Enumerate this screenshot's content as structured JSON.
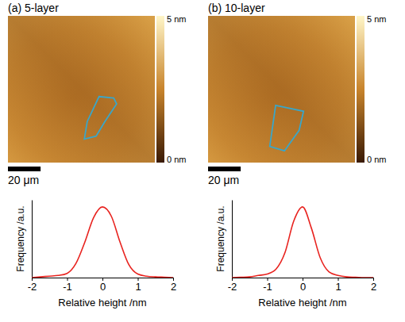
{
  "images": [
    {
      "title": "(a) 5-layer",
      "colorbar_range": [
        0,
        5
      ],
      "colorbar_ticks": [
        {
          "value": 0,
          "label": "0 nm"
        },
        {
          "value": 5,
          "label": "5 nm"
        }
      ],
      "extent": 90,
      "scale_bar": {
        "value": 20,
        "label": "20 μm"
      }
    },
    {
      "title": "(b) 10-layer",
      "colorbar_range": [
        0,
        5
      ],
      "colorbar_ticks": [
        {
          "value": 0,
          "label": "0 nm"
        },
        {
          "value": 5,
          "label": "5 nm"
        }
      ],
      "extent": 90,
      "scale_bar": {
        "value": 20,
        "label": "20 μm"
      }
    }
  ],
  "chart_data": [
    {
      "type": "line",
      "xlabel": "Relative height /nm",
      "ylabel": "Frequency /a.u.",
      "x": [
        -2,
        -1.75,
        -1.5,
        -1.25,
        -1,
        -0.75,
        -0.5,
        -0.25,
        0,
        0.25,
        0.5,
        0.75,
        1,
        1.25,
        1.5,
        1.75,
        2
      ],
      "values": [
        0.0,
        0.01,
        0.02,
        0.03,
        0.06,
        0.2,
        0.5,
        0.85,
        1.0,
        0.87,
        0.5,
        0.18,
        0.05,
        0.02,
        0.01,
        0.005,
        0.0
      ],
      "color": "#e8231f",
      "xlim": [
        -2,
        2
      ],
      "xticks": [
        -2,
        -1,
        0,
        1,
        2
      ],
      "ylim": [
        0,
        1.1
      ],
      "tick_labels": "x"
    },
    {
      "type": "line",
      "xlabel": "Relative height /nm",
      "ylabel": "Frequency /a.u.",
      "x": [
        -2,
        -1.75,
        -1.5,
        -1.25,
        -1,
        -0.75,
        -0.5,
        -0.25,
        0,
        0.25,
        0.5,
        0.75,
        1,
        1.25,
        1.5,
        1.75,
        2
      ],
      "values": [
        0.0,
        0.005,
        0.01,
        0.03,
        0.05,
        0.12,
        0.35,
        0.8,
        1.0,
        0.7,
        0.28,
        0.08,
        0.03,
        0.01,
        0.005,
        0.0,
        0.0
      ],
      "color": "#e8231f",
      "xlim": [
        -2,
        2
      ],
      "xticks": [
        -2,
        -1,
        0,
        1,
        2
      ],
      "ylim": [
        0,
        1.1
      ],
      "tick_labels": "x"
    }
  ]
}
